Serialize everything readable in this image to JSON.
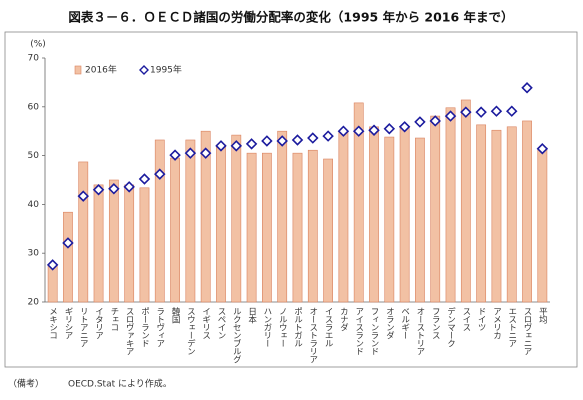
{
  "chart_data": {
    "type": "bar",
    "title": "図表３－６．ＯＥＣＤ諸国の労働分配率の変化（1995 年から 2016 年まで）",
    "y_label": "(%)",
    "categories": [
      "メキシコ",
      "ギリシア",
      "リトアニア",
      "イタリア",
      "チェコ",
      "スロヴァキア",
      "ポーランド",
      "ラトヴィア",
      "韓国",
      "スウェーデン",
      "イギリス",
      "スペイン",
      "ルクセンブルグ",
      "日本",
      "ハンガリー",
      "ノルウェー",
      "ポルトガル",
      "オーストラリア",
      "イスラエル",
      "カナダ",
      "アイスランド",
      "フィンランド",
      "オランダ",
      "ベルギー",
      "オーストリア",
      "フランス",
      "デンマーク",
      "スイス",
      "ドイツ",
      "アメリカ",
      "エストニア",
      "スロヴェニア",
      "平均"
    ],
    "series": [
      {
        "name": "2016年",
        "type": "bar",
        "color": "#f2c1a4",
        "edge": "#d9825f",
        "values": [
          27.6,
          38.4,
          48.7,
          44,
          45,
          44,
          43.4,
          53.2,
          49.5,
          53.2,
          55,
          52.2,
          54.2,
          50.5,
          50.5,
          55,
          50.5,
          51.1,
          49.3,
          55,
          60.8,
          55.9,
          53.8,
          56,
          53.6,
          58.1,
          59.8,
          61.4,
          56.3,
          55.2,
          55.9,
          57.1,
          51.6
        ]
      },
      {
        "name": "1995年",
        "type": "scatter",
        "color": "#1b1b9e",
        "values": [
          27.6,
          32.1,
          41.7,
          43,
          43.2,
          43.6,
          45.2,
          46.2,
          50.1,
          50.5,
          50.5,
          52,
          52,
          52.4,
          53,
          53,
          53.2,
          53.6,
          54,
          55,
          55,
          55.2,
          55.5,
          55.9,
          56.9,
          57.1,
          58.1,
          58.9,
          58.9,
          59.1,
          59.1,
          63.9,
          51.4
        ]
      }
    ],
    "ylim": [
      20,
      70
    ],
    "yticks": [
      20,
      30,
      40,
      50,
      60,
      70
    ],
    "grid": false,
    "notes": [
      "（備考）",
      "OECD.Stat により作成。"
    ]
  }
}
